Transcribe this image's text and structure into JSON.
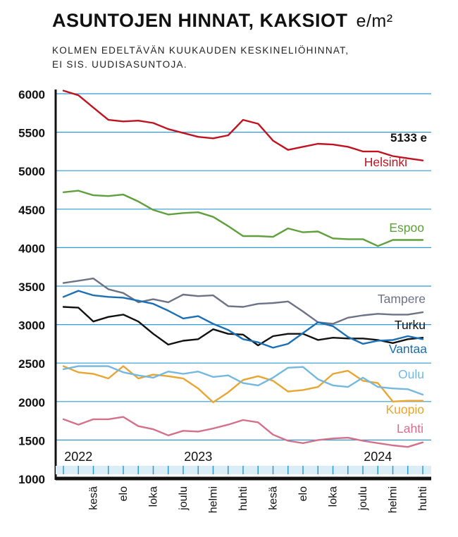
{
  "header": {
    "title": "ASUNTOJEN HINNAT, KAKSIOT",
    "unit": "e/m²",
    "subtitle_line1": "KOLMEN EDELTÄVÄN KUUKAUDEN KESKINELIÖHINNAT,",
    "subtitle_line2": "EI SIS. UUDISASUNTOJA."
  },
  "chart_data": {
    "type": "line",
    "title": "ASUNTOJEN HINNAT, KAKSIOT e/m²",
    "subtitle": "KOLMEN EDELTÄVÄN KUUKAUDEN KESKINELIÖHINNAT, EI SIS. UUDISASUNTOJA.",
    "xlabel": "",
    "ylabel": "e/m²",
    "ylim": [
      1000,
      6000
    ],
    "yticks": [
      1000,
      1500,
      2000,
      2500,
      3000,
      3500,
      4000,
      4500,
      5000,
      5500,
      6000
    ],
    "grid": true,
    "x": [
      "2022-04",
      "2022-05",
      "2022-06",
      "2022-07",
      "2022-08",
      "2022-09",
      "2022-10",
      "2022-11",
      "2022-12",
      "2023-01",
      "2023-02",
      "2023-03",
      "2023-04",
      "2023-05",
      "2023-06",
      "2023-07",
      "2023-08",
      "2023-09",
      "2023-10",
      "2023-11",
      "2023-12",
      "2024-01",
      "2024-02",
      "2024-03",
      "2024-04"
    ],
    "year_labels": [
      {
        "label": "2022",
        "x": "2022-05"
      },
      {
        "label": "2023",
        "x": "2023-01"
      },
      {
        "label": "2024",
        "x": "2024-01"
      }
    ],
    "month_labels": [
      {
        "label": "kesä",
        "x": "2022-06"
      },
      {
        "label": "elo",
        "x": "2022-08"
      },
      {
        "label": "loka",
        "x": "2022-10"
      },
      {
        "label": "joulu",
        "x": "2022-12"
      },
      {
        "label": "helmi",
        "x": "2023-02"
      },
      {
        "label": "huhti",
        "x": "2023-04"
      },
      {
        "label": "kesä",
        "x": "2023-06"
      },
      {
        "label": "elo",
        "x": "2023-08"
      },
      {
        "label": "loka",
        "x": "2023-10"
      },
      {
        "label": "joulu",
        "x": "2023-12"
      },
      {
        "label": "helmi",
        "x": "2024-02"
      },
      {
        "label": "huhti",
        "x": "2024-04"
      }
    ],
    "annotations": [
      {
        "text": "5133 e",
        "series": "Helsinki"
      }
    ],
    "series": [
      {
        "name": "Helsinki",
        "color": "#c1121f",
        "values": [
          6040,
          5980,
          5820,
          5660,
          5640,
          5650,
          5620,
          5540,
          5490,
          5440,
          5420,
          5460,
          5660,
          5610,
          5390,
          5270,
          5310,
          5350,
          5340,
          5310,
          5250,
          5250,
          5190,
          5160,
          5133
        ]
      },
      {
        "name": "Espoo",
        "color": "#5ea03c",
        "values": [
          4720,
          4740,
          4680,
          4670,
          4690,
          4600,
          4490,
          4430,
          4450,
          4460,
          4400,
          4280,
          4150,
          4150,
          4140,
          4250,
          4200,
          4210,
          4120,
          4110,
          4110,
          4020,
          4100,
          4100,
          4100
        ]
      },
      {
        "name": "Tampere",
        "color": "#6e7287",
        "values": [
          3540,
          3570,
          3600,
          3460,
          3410,
          3290,
          3330,
          3290,
          3390,
          3370,
          3380,
          3240,
          3230,
          3270,
          3280,
          3300,
          3170,
          3030,
          3010,
          3090,
          3120,
          3140,
          3130,
          3130,
          3160
        ]
      },
      {
        "name": "Turku",
        "color": "#111111",
        "values": [
          3230,
          3220,
          3040,
          3100,
          3130,
          3040,
          2880,
          2740,
          2790,
          2810,
          2940,
          2880,
          2870,
          2730,
          2850,
          2880,
          2880,
          2800,
          2830,
          2820,
          2820,
          2800,
          2760,
          2810,
          2830
        ]
      },
      {
        "name": "Vantaa",
        "color": "#1a6fb5",
        "values": [
          3360,
          3440,
          3380,
          3360,
          3350,
          3310,
          3270,
          3180,
          3080,
          3110,
          3010,
          2930,
          2810,
          2770,
          2700,
          2750,
          2890,
          3030,
          2980,
          2840,
          2750,
          2790,
          2800,
          2850,
          2810
        ]
      },
      {
        "name": "Oulu",
        "color": "#74b8e0",
        "values": [
          2420,
          2460,
          2460,
          2460,
          2380,
          2340,
          2310,
          2390,
          2360,
          2390,
          2320,
          2340,
          2240,
          2210,
          2310,
          2440,
          2450,
          2290,
          2210,
          2190,
          2310,
          2190,
          2170,
          2160,
          2090
        ]
      },
      {
        "name": "Kuopio",
        "color": "#e8a531",
        "values": [
          2460,
          2380,
          2360,
          2300,
          2460,
          2300,
          2350,
          2330,
          2300,
          2170,
          1990,
          2120,
          2280,
          2330,
          2270,
          2130,
          2150,
          2190,
          2360,
          2400,
          2270,
          2240,
          2000,
          2010,
          2010
        ]
      },
      {
        "name": "Lahti",
        "color": "#d47089",
        "values": [
          1770,
          1700,
          1770,
          1770,
          1800,
          1680,
          1640,
          1560,
          1620,
          1610,
          1650,
          1700,
          1760,
          1730,
          1570,
          1490,
          1460,
          1500,
          1520,
          1530,
          1490,
          1460,
          1430,
          1410,
          1470
        ]
      }
    ]
  }
}
